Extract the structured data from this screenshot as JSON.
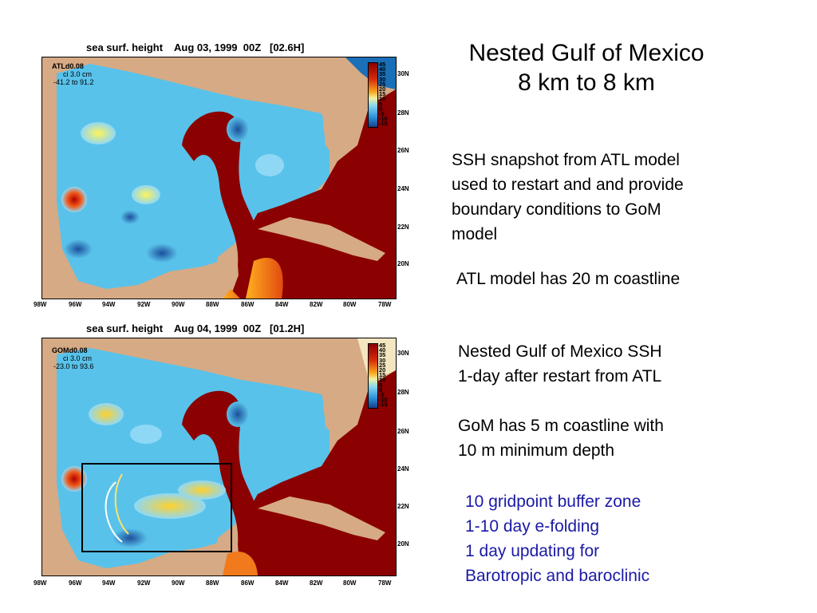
{
  "slide": {
    "title_line1": "Nested Gulf of Mexico",
    "title_line2": "8 km to 8 km",
    "para1": [
      "SSH snapshot from ATL model",
      "used to restart and and provide",
      "boundary conditions to GoM",
      "model"
    ],
    "para2": "ATL model has 20 m coastline",
    "para3": [
      "Nested Gulf of Mexico SSH",
      "1-day after restart from ATL"
    ],
    "para4": [
      "GoM has 5 m coastline with",
      "10 m minimum depth"
    ],
    "para5": [
      "10 gridpoint buffer zone",
      "1-10 day e-folding",
      "1 day updating for",
      "Barotropic and baroclinic"
    ]
  },
  "maps": [
    {
      "title": "sea surf. height    Aug 03, 1999  00Z   [02.6H]",
      "model": "ATLd0.08",
      "ci": "ci  3.0 cm",
      "range": "-41.2 to   91.2"
    },
    {
      "title": "sea surf. height    Aug 04, 1999  00Z   [01.2H]",
      "model": "GOMd0.08",
      "ci": "ci  3.0 cm",
      "range": "-23.0 to   93.6"
    }
  ],
  "axes": {
    "lon": [
      "98W",
      "96W",
      "94W",
      "92W",
      "90W",
      "88W",
      "86W",
      "84W",
      "82W",
      "80W",
      "78W"
    ],
    "lat": [
      "30N",
      "28N",
      "26N",
      "24N",
      "22N",
      "20N"
    ]
  },
  "colorbar_labels": [
    "45",
    "40",
    "35",
    "30",
    "25",
    "20",
    "15",
    "10",
    "5",
    "0",
    "-5",
    "-10",
    "-15"
  ],
  "colors": {
    "land": "#d6aa84",
    "ocean_low": "#4ab8e8",
    "current": "#8b0000",
    "text_blue": "#1a1aa6"
  }
}
